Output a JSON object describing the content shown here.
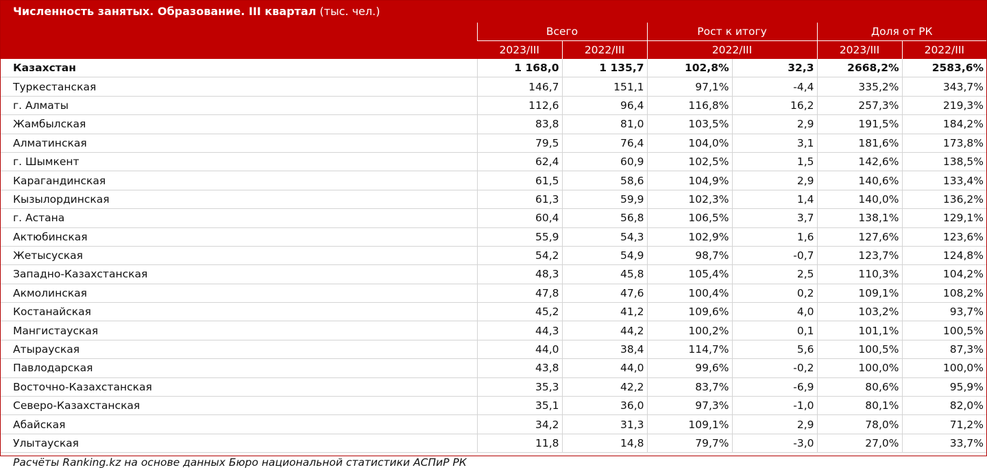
{
  "title": {
    "bold": "Численность занятых. Образование. III квартал",
    "unit": "(тыс. чел.)"
  },
  "header": {
    "groups": [
      "Всего",
      "Рост к итогу",
      "Доля от РК"
    ],
    "sub": [
      "2023/III",
      "2022/III",
      "2022/III",
      "2023/III",
      "2022/III"
    ]
  },
  "footer": "Расчёты Ranking.kz на основе данных Бюро национальной статистики АСПиР РК",
  "chart_data": {
    "type": "table",
    "title": "Численность занятых. Образование. III квартал (тыс. чел.)",
    "columns": [
      "Всего 2023/III",
      "Всего 2022/III",
      "Рост к итогу 2022/III (%)",
      "Рост к итогу 2022/III (абс.)",
      "Доля от РК 2023/III",
      "Доля от РК 2022/III"
    ],
    "rows": [
      {
        "name": "Казахстан",
        "total": true,
        "values": [
          "1 168,0",
          "1 135,7",
          "102,8%",
          "32,3",
          "2668,2%",
          "2583,6%"
        ]
      },
      {
        "name": "Туркестанская",
        "values": [
          "146,7",
          "151,1",
          "97,1%",
          "-4,4",
          "335,2%",
          "343,7%"
        ]
      },
      {
        "name": "г. Алматы",
        "values": [
          "112,6",
          "96,4",
          "116,8%",
          "16,2",
          "257,3%",
          "219,3%"
        ]
      },
      {
        "name": "Жамбылская",
        "values": [
          "83,8",
          "81,0",
          "103,5%",
          "2,9",
          "191,5%",
          "184,2%"
        ]
      },
      {
        "name": "Алматинская",
        "values": [
          "79,5",
          "76,4",
          "104,0%",
          "3,1",
          "181,6%",
          "173,8%"
        ]
      },
      {
        "name": "г. Шымкент",
        "values": [
          "62,4",
          "60,9",
          "102,5%",
          "1,5",
          "142,6%",
          "138,5%"
        ]
      },
      {
        "name": "Карагандинская",
        "values": [
          "61,5",
          "58,6",
          "104,9%",
          "2,9",
          "140,6%",
          "133,4%"
        ]
      },
      {
        "name": "Кызылординская",
        "values": [
          "61,3",
          "59,9",
          "102,3%",
          "1,4",
          "140,0%",
          "136,2%"
        ]
      },
      {
        "name": "г. Астана",
        "values": [
          "60,4",
          "56,8",
          "106,5%",
          "3,7",
          "138,1%",
          "129,1%"
        ]
      },
      {
        "name": "Актюбинская",
        "values": [
          "55,9",
          "54,3",
          "102,9%",
          "1,6",
          "127,6%",
          "123,6%"
        ]
      },
      {
        "name": "Жетысуская",
        "values": [
          "54,2",
          "54,9",
          "98,7%",
          "-0,7",
          "123,7%",
          "124,8%"
        ]
      },
      {
        "name": "Западно-Казахстанская",
        "values": [
          "48,3",
          "45,8",
          "105,4%",
          "2,5",
          "110,3%",
          "104,2%"
        ]
      },
      {
        "name": "Акмолинская",
        "values": [
          "47,8",
          "47,6",
          "100,4%",
          "0,2",
          "109,1%",
          "108,2%"
        ]
      },
      {
        "name": "Костанайская",
        "values": [
          "45,2",
          "41,2",
          "109,6%",
          "4,0",
          "103,2%",
          "93,7%"
        ]
      },
      {
        "name": "Мангистауская",
        "values": [
          "44,3",
          "44,2",
          "100,2%",
          "0,1",
          "101,1%",
          "100,5%"
        ]
      },
      {
        "name": "Атырауская",
        "values": [
          "44,0",
          "38,4",
          "114,7%",
          "5,6",
          "100,5%",
          "87,3%"
        ]
      },
      {
        "name": "Павлодарская",
        "values": [
          "43,8",
          "44,0",
          "99,6%",
          "-0,2",
          "100,0%",
          "100,0%"
        ]
      },
      {
        "name": "Восточно-Казахстанская",
        "values": [
          "35,3",
          "42,2",
          "83,7%",
          "-6,9",
          "80,6%",
          "95,9%"
        ]
      },
      {
        "name": "Северо-Казахстанская",
        "values": [
          "35,1",
          "36,0",
          "97,3%",
          "-1,0",
          "80,1%",
          "82,0%"
        ]
      },
      {
        "name": "Абайская",
        "values": [
          "34,2",
          "31,3",
          "109,1%",
          "2,9",
          "78,0%",
          "71,2%"
        ]
      },
      {
        "name": "Улытауская",
        "values": [
          "11,8",
          "14,8",
          "79,7%",
          "-3,0",
          "27,0%",
          "33,7%"
        ]
      }
    ]
  },
  "colors": {
    "header_bg": "#c00000",
    "header_text": "#ffffff",
    "grid": "#d4d4d4"
  }
}
